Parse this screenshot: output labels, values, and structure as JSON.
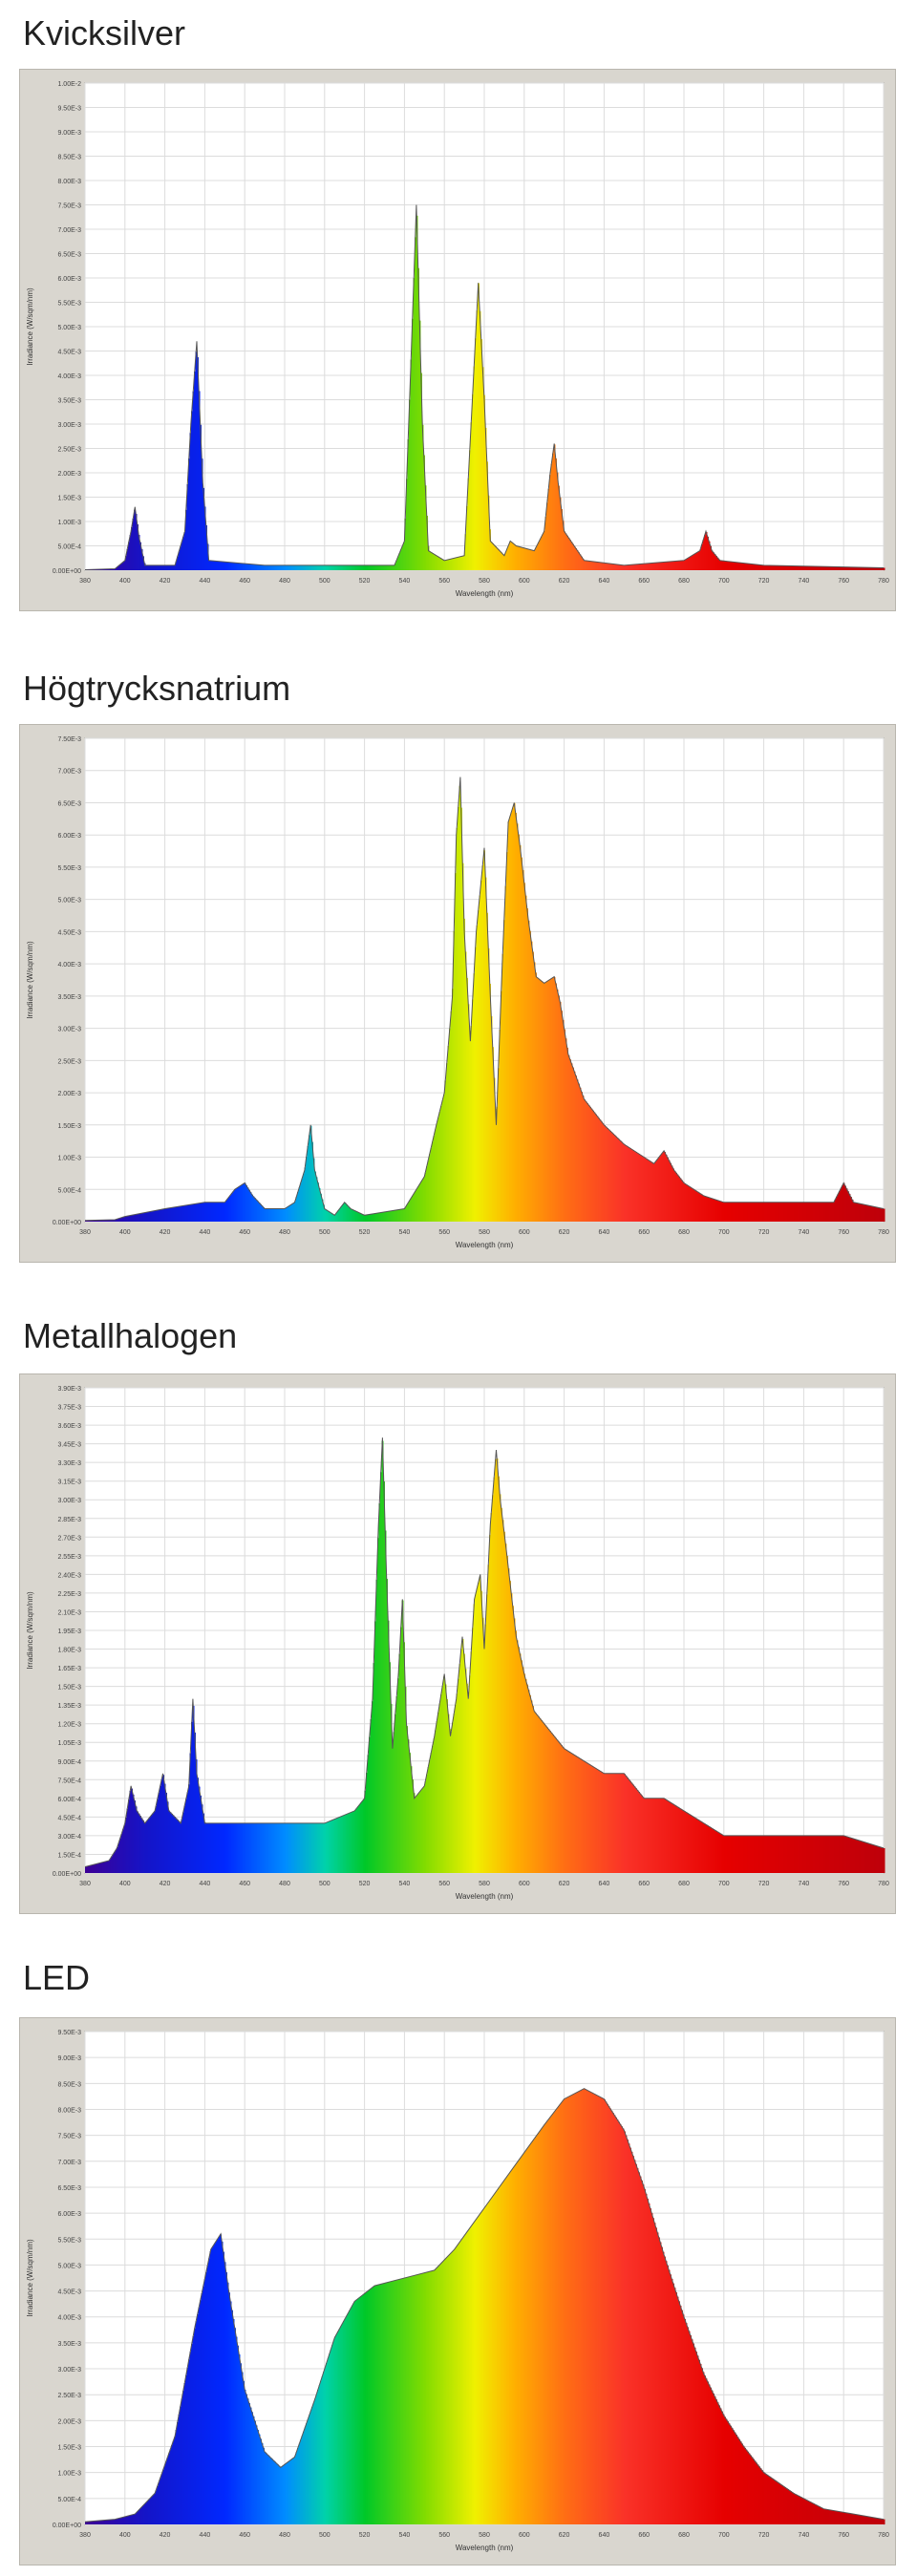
{
  "chart_data": [
    {
      "type": "area",
      "title": "Kvicksilver",
      "xlabel": "Wavelength (nm)",
      "ylabel": "Irradiance (W/sqm/nm)",
      "xlim": [
        380,
        780
      ],
      "ylim": [
        0,
        0.01
      ],
      "x_ticks": [
        "380",
        "400",
        "420",
        "440",
        "460",
        "480",
        "500",
        "520",
        "540",
        "560",
        "580",
        "600",
        "620",
        "640",
        "660",
        "680",
        "700",
        "720",
        "740",
        "760",
        "780"
      ],
      "y_ticks": [
        "0.00E+00",
        "5.00E-4",
        "1.00E-3",
        "1.50E-3",
        "2.00E-3",
        "2.50E-3",
        "3.00E-3",
        "3.50E-3",
        "4.00E-3",
        "4.50E-3",
        "5.00E-3",
        "5.50E-3",
        "6.00E-3",
        "6.50E-3",
        "7.00E-3",
        "7.50E-3",
        "8.00E-3",
        "8.50E-3",
        "9.00E-3",
        "9.50E-3",
        "1.00E-2"
      ],
      "grid": true,
      "series": [
        {
          "values": [
            [
              380,
              1e-05
            ],
            [
              395,
              3e-05
            ],
            [
              400,
              0.0002
            ],
            [
              403,
              0.0008
            ],
            [
              405,
              0.0013
            ],
            [
              407,
              0.0007
            ],
            [
              410,
              0.0001
            ],
            [
              425,
              0.0001
            ],
            [
              430,
              0.0008
            ],
            [
              433,
              0.003
            ],
            [
              436,
              0.0047
            ],
            [
              439,
              0.0018
            ],
            [
              442,
              0.0002
            ],
            [
              470,
              0.0001
            ],
            [
              490,
              0.0001
            ],
            [
              535,
              0.0001
            ],
            [
              540,
              0.0006
            ],
            [
              543,
              0.004
            ],
            [
              546,
              0.0075
            ],
            [
              549,
              0.003
            ],
            [
              552,
              0.0004
            ],
            [
              560,
              0.0002
            ],
            [
              570,
              0.0003
            ],
            [
              574,
              0.0035
            ],
            [
              577,
              0.0059
            ],
            [
              580,
              0.0035
            ],
            [
              583,
              0.0006
            ],
            [
              590,
              0.0003
            ],
            [
              593,
              0.0006
            ],
            [
              596,
              0.0005
            ],
            [
              605,
              0.0004
            ],
            [
              610,
              0.0008
            ],
            [
              613,
              0.002
            ],
            [
              615,
              0.0026
            ],
            [
              617,
              0.0018
            ],
            [
              620,
              0.0008
            ],
            [
              630,
              0.0002
            ],
            [
              650,
              0.0001
            ],
            [
              680,
              0.0002
            ],
            [
              688,
              0.0004
            ],
            [
              691,
              0.0008
            ],
            [
              694,
              0.0004
            ],
            [
              698,
              0.0002
            ],
            [
              720,
              0.0001
            ],
            [
              780,
              5e-05
            ]
          ]
        }
      ]
    },
    {
      "type": "area",
      "title": "Högtrycksnatrium",
      "xlabel": "Wavelength (nm)",
      "ylabel": "Irradiance (W/sqm/nm)",
      "xlim": [
        380,
        780
      ],
      "ylim": [
        0,
        0.0075
      ],
      "x_ticks": [
        "380",
        "400",
        "420",
        "440",
        "460",
        "480",
        "500",
        "520",
        "540",
        "560",
        "580",
        "600",
        "620",
        "640",
        "660",
        "680",
        "700",
        "720",
        "740",
        "760",
        "780"
      ],
      "y_ticks": [
        "0.00E+00",
        "5.00E-4",
        "1.00E-3",
        "1.50E-3",
        "2.00E-3",
        "2.50E-3",
        "3.00E-3",
        "3.50E-3",
        "4.00E-3",
        "4.50E-3",
        "5.00E-3",
        "5.50E-3",
        "6.00E-3",
        "6.50E-3",
        "7.00E-3",
        "7.50E-3"
      ],
      "grid": true,
      "series": [
        {
          "values": [
            [
              380,
              2e-05
            ],
            [
              395,
              3e-05
            ],
            [
              400,
              8e-05
            ],
            [
              420,
              0.0002
            ],
            [
              440,
              0.0003
            ],
            [
              450,
              0.0003
            ],
            [
              455,
              0.0005
            ],
            [
              460,
              0.0006
            ],
            [
              464,
              0.0004
            ],
            [
              470,
              0.0002
            ],
            [
              480,
              0.0002
            ],
            [
              485,
              0.0003
            ],
            [
              490,
              0.0008
            ],
            [
              493,
              0.0015
            ],
            [
              495,
              0.0008
            ],
            [
              500,
              0.0002
            ],
            [
              505,
              0.0001
            ],
            [
              510,
              0.0003
            ],
            [
              513,
              0.0002
            ],
            [
              520,
              0.0001
            ],
            [
              540,
              0.0002
            ],
            [
              550,
              0.0007
            ],
            [
              556,
              0.0015
            ],
            [
              560,
              0.002
            ],
            [
              564,
              0.0035
            ],
            [
              566,
              0.006
            ],
            [
              568,
              0.0069
            ],
            [
              570,
              0.0045
            ],
            [
              573,
              0.0028
            ],
            [
              576,
              0.0045
            ],
            [
              580,
              0.0058
            ],
            [
              583,
              0.0035
            ],
            [
              586,
              0.0015
            ],
            [
              589,
              0.004
            ],
            [
              592,
              0.0062
            ],
            [
              595,
              0.0065
            ],
            [
              598,
              0.0058
            ],
            [
              602,
              0.0047
            ],
            [
              606,
              0.0038
            ],
            [
              610,
              0.0037
            ],
            [
              615,
              0.0038
            ],
            [
              618,
              0.0034
            ],
            [
              622,
              0.0026
            ],
            [
              630,
              0.0019
            ],
            [
              640,
              0.0015
            ],
            [
              650,
              0.0012
            ],
            [
              660,
              0.001
            ],
            [
              665,
              0.0009
            ],
            [
              670,
              0.0011
            ],
            [
              675,
              0.0008
            ],
            [
              680,
              0.0006
            ],
            [
              690,
              0.0004
            ],
            [
              700,
              0.0003
            ],
            [
              720,
              0.0003
            ],
            [
              740,
              0.0003
            ],
            [
              755,
              0.0003
            ],
            [
              760,
              0.0006
            ],
            [
              765,
              0.0003
            ],
            [
              780,
              0.0002
            ]
          ]
        }
      ]
    },
    {
      "type": "area",
      "title": "Metallhalogen",
      "xlabel": "Wavelength (nm)",
      "ylabel": "Irradiance (W/sqm/nm)",
      "xlim": [
        380,
        780
      ],
      "ylim": [
        0,
        0.0039
      ],
      "x_ticks": [
        "380",
        "400",
        "420",
        "440",
        "460",
        "480",
        "500",
        "520",
        "540",
        "560",
        "580",
        "600",
        "620",
        "640",
        "660",
        "680",
        "700",
        "720",
        "740",
        "760",
        "780"
      ],
      "y_ticks": [
        "0.00E+00",
        "1.50E-4",
        "3.00E-4",
        "4.50E-4",
        "6.00E-4",
        "7.50E-4",
        "9.00E-4",
        "1.05E-3",
        "1.20E-3",
        "1.35E-3",
        "1.50E-3",
        "1.65E-3",
        "1.80E-3",
        "1.95E-3",
        "2.10E-3",
        "2.25E-3",
        "2.40E-3",
        "2.55E-3",
        "2.70E-3",
        "2.85E-3",
        "3.00E-3",
        "3.15E-3",
        "3.30E-3",
        "3.45E-3",
        "3.60E-3",
        "3.75E-3",
        "3.90E-3"
      ],
      "grid": true,
      "series": [
        {
          "values": [
            [
              380,
              5e-05
            ],
            [
              392,
              0.0001
            ],
            [
              396,
              0.0002
            ],
            [
              400,
              0.0004
            ],
            [
              403,
              0.0007
            ],
            [
              406,
              0.0005
            ],
            [
              410,
              0.0004
            ],
            [
              415,
              0.0005
            ],
            [
              419,
              0.0008
            ],
            [
              422,
              0.0005
            ],
            [
              428,
              0.0004
            ],
            [
              432,
              0.0007
            ],
            [
              434,
              0.0014
            ],
            [
              436,
              0.0008
            ],
            [
              440,
              0.0004
            ],
            [
              460,
              0.0004
            ],
            [
              480,
              0.0004
            ],
            [
              500,
              0.0004
            ],
            [
              515,
              0.0005
            ],
            [
              520,
              0.0006
            ],
            [
              524,
              0.0014
            ],
            [
              527,
              0.0028
            ],
            [
              529,
              0.0035
            ],
            [
              531,
              0.0024
            ],
            [
              534,
              0.001
            ],
            [
              537,
              0.0016
            ],
            [
              539,
              0.0022
            ],
            [
              541,
              0.0012
            ],
            [
              545,
              0.0006
            ],
            [
              550,
              0.0007
            ],
            [
              555,
              0.0011
            ],
            [
              560,
              0.0016
            ],
            [
              563,
              0.0011
            ],
            [
              566,
              0.0014
            ],
            [
              569,
              0.0019
            ],
            [
              572,
              0.0014
            ],
            [
              575,
              0.0022
            ],
            [
              578,
              0.0024
            ],
            [
              580,
              0.0018
            ],
            [
              583,
              0.0028
            ],
            [
              586,
              0.0034
            ],
            [
              588,
              0.003
            ],
            [
              591,
              0.0026
            ],
            [
              596,
              0.0019
            ],
            [
              600,
              0.0016
            ],
            [
              605,
              0.0013
            ],
            [
              610,
              0.0012
            ],
            [
              620,
              0.001
            ],
            [
              630,
              0.0009
            ],
            [
              640,
              0.0008
            ],
            [
              650,
              0.0008
            ],
            [
              660,
              0.0006
            ],
            [
              670,
              0.0006
            ],
            [
              680,
              0.0005
            ],
            [
              690,
              0.0004
            ],
            [
              700,
              0.0003
            ],
            [
              720,
              0.0003
            ],
            [
              740,
              0.0003
            ],
            [
              760,
              0.0003
            ],
            [
              780,
              0.0002
            ]
          ]
        }
      ]
    },
    {
      "type": "area",
      "title": "LED",
      "xlabel": "Wavelength (nm)",
      "ylabel": "Irradiance (W/sqm/nm)",
      "xlim": [
        380,
        780
      ],
      "ylim": [
        0,
        0.0095
      ],
      "x_ticks": [
        "380",
        "400",
        "420",
        "440",
        "460",
        "480",
        "500",
        "520",
        "540",
        "560",
        "580",
        "600",
        "620",
        "640",
        "660",
        "680",
        "700",
        "720",
        "740",
        "760",
        "780"
      ],
      "y_ticks": [
        "0.00E+00",
        "5.00E-4",
        "1.00E-3",
        "1.50E-3",
        "2.00E-3",
        "2.50E-3",
        "3.00E-3",
        "3.50E-3",
        "4.00E-3",
        "4.50E-3",
        "5.00E-3",
        "5.50E-3",
        "6.00E-3",
        "6.50E-3",
        "7.00E-3",
        "7.50E-3",
        "8.00E-3",
        "8.50E-3",
        "9.00E-3",
        "9.50E-3"
      ],
      "grid": true,
      "series": [
        {
          "values": [
            [
              380,
              5e-05
            ],
            [
              395,
              0.0001
            ],
            [
              405,
              0.0002
            ],
            [
              415,
              0.0006
            ],
            [
              425,
              0.0017
            ],
            [
              435,
              0.0038
            ],
            [
              443,
              0.0053
            ],
            [
              448,
              0.0056
            ],
            [
              452,
              0.0045
            ],
            [
              460,
              0.0026
            ],
            [
              470,
              0.0014
            ],
            [
              478,
              0.0011
            ],
            [
              485,
              0.0013
            ],
            [
              495,
              0.0024
            ],
            [
              505,
              0.0036
            ],
            [
              515,
              0.0043
            ],
            [
              525,
              0.0046
            ],
            [
              535,
              0.0047
            ],
            [
              545,
              0.0048
            ],
            [
              555,
              0.0049
            ],
            [
              565,
              0.0053
            ],
            [
              580,
              0.0061
            ],
            [
              595,
              0.0069
            ],
            [
              610,
              0.0077
            ],
            [
              620,
              0.0082
            ],
            [
              630,
              0.0084
            ],
            [
              640,
              0.0082
            ],
            [
              650,
              0.0076
            ],
            [
              660,
              0.0065
            ],
            [
              670,
              0.0052
            ],
            [
              680,
              0.004
            ],
            [
              690,
              0.0029
            ],
            [
              700,
              0.0021
            ],
            [
              710,
              0.0015
            ],
            [
              720,
              0.001
            ],
            [
              735,
              0.0006
            ],
            [
              750,
              0.0003
            ],
            [
              765,
              0.0002
            ],
            [
              780,
              0.0001
            ]
          ]
        }
      ]
    }
  ]
}
